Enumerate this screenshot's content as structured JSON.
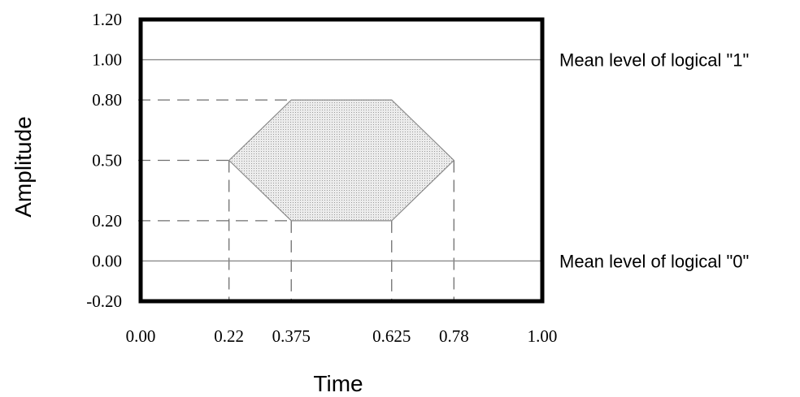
{
  "chart_data": {
    "type": "area",
    "title": "",
    "xlabel": "Time",
    "ylabel": "Amplitude",
    "xlim": [
      0,
      1
    ],
    "ylim": [
      -0.2,
      1.2
    ],
    "x_ticks": [
      {
        "value": 0.0,
        "label": "0.00"
      },
      {
        "value": 0.22,
        "label": "0.22"
      },
      {
        "value": 0.375,
        "label": "0.375"
      },
      {
        "value": 0.625,
        "label": "0.625"
      },
      {
        "value": 0.78,
        "label": "0.78"
      },
      {
        "value": 1.0,
        "label": "1.00"
      }
    ],
    "y_ticks": [
      {
        "value": 1.2,
        "label": "1.20"
      },
      {
        "value": 1.0,
        "label": "1.00"
      },
      {
        "value": 0.8,
        "label": "0.80"
      },
      {
        "value": 0.5,
        "label": "0.50"
      },
      {
        "value": 0.2,
        "label": "0.20"
      },
      {
        "value": 0.0,
        "label": "0.00"
      },
      {
        "value": -0.2,
        "label": "-0.20"
      }
    ],
    "mask_polygon": {
      "x": [
        0.22,
        0.375,
        0.625,
        0.78,
        0.625,
        0.375
      ],
      "y": [
        0.5,
        0.8,
        0.8,
        0.5,
        0.2,
        0.2
      ]
    },
    "reference_lines": [
      {
        "y": 1.0,
        "label": "Mean level of logical \"1\""
      },
      {
        "y": 0.0,
        "label": "Mean level of logical \"0\""
      }
    ],
    "dashed_guides": {
      "horizontal_y": [
        0.8,
        0.5,
        0.2
      ],
      "vertical_x": [
        0.22,
        0.375,
        0.625,
        0.78
      ]
    },
    "grid": false,
    "colors": {
      "frame": "#000000",
      "mask_fill": "#e2e2e2",
      "mask_stroke": "#8a8a8a",
      "reference_line": "#8a8a8a",
      "dashed_guide": "#6f6f6f"
    }
  }
}
